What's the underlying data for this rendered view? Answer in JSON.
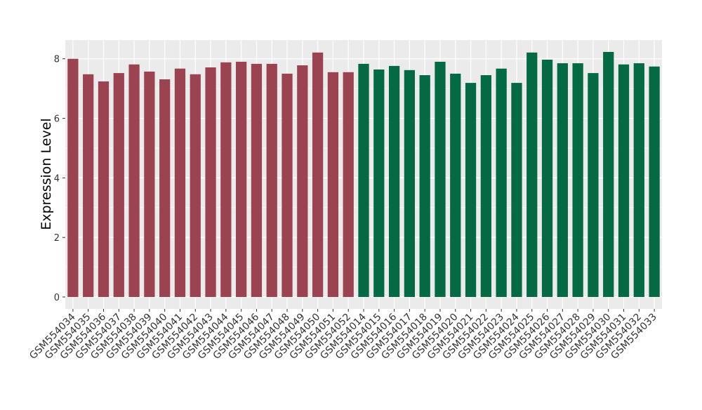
{
  "chart_data": {
    "type": "bar",
    "ylabel": "Expression Level",
    "categories": [
      "GSM554034",
      "GSM554035",
      "GSM554036",
      "GSM554037",
      "GSM554038",
      "GSM554039",
      "GSM554040",
      "GSM554041",
      "GSM554042",
      "GSM554043",
      "GSM554044",
      "GSM554045",
      "GSM554046",
      "GSM554047",
      "GSM554048",
      "GSM554049",
      "GSM554050",
      "GSM554051",
      "GSM554052",
      "GSM554014",
      "GSM554015",
      "GSM554016",
      "GSM554017",
      "GSM554018",
      "GSM554019",
      "GSM554020",
      "GSM554021",
      "GSM554022",
      "GSM554023",
      "GSM554024",
      "GSM554025",
      "GSM554026",
      "GSM554027",
      "GSM554028",
      "GSM554029",
      "GSM554030",
      "GSM554031",
      "GSM554032",
      "GSM554033"
    ],
    "values": [
      8.0,
      7.48,
      7.24,
      7.52,
      7.81,
      7.57,
      7.31,
      7.67,
      7.48,
      7.71,
      7.88,
      7.9,
      7.83,
      7.83,
      7.5,
      7.78,
      8.21,
      7.55,
      7.55,
      7.83,
      7.64,
      7.76,
      7.62,
      7.45,
      7.9,
      7.5,
      7.19,
      7.45,
      7.67,
      7.19,
      8.21,
      7.97,
      7.85,
      7.85,
      7.52,
      8.23,
      7.81,
      7.85,
      7.74
    ],
    "colors": [
      "#9b4350",
      "#9b4350",
      "#9b4350",
      "#9b4350",
      "#9b4350",
      "#9b4350",
      "#9b4350",
      "#9b4350",
      "#9b4350",
      "#9b4350",
      "#9b4350",
      "#9b4350",
      "#9b4350",
      "#9b4350",
      "#9b4350",
      "#9b4350",
      "#9b4350",
      "#9b4350",
      "#9b4350",
      "#046a44",
      "#046a44",
      "#046a44",
      "#046a44",
      "#046a44",
      "#046a44",
      "#046a44",
      "#046a44",
      "#046a44",
      "#046a44",
      "#046a44",
      "#046a44",
      "#046a44",
      "#046a44",
      "#046a44",
      "#046a44",
      "#046a44",
      "#046a44",
      "#046a44",
      "#046a44"
    ],
    "ylim": [
      -0.4,
      8.63
    ],
    "yticks": [
      0,
      2,
      4,
      6,
      8
    ],
    "grid": true
  }
}
